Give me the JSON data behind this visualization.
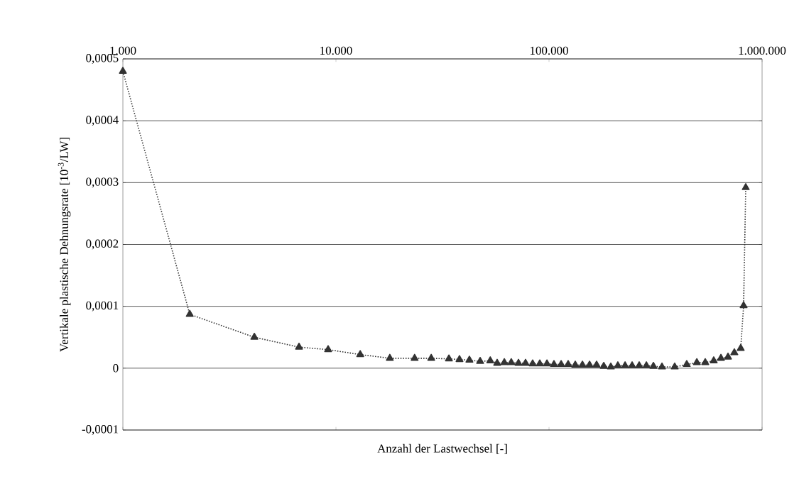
{
  "chart_data": {
    "type": "line",
    "xlabel": "Anzahl der Lastwechsel [-]",
    "ylabel": "Vertikale plastische Dehnungsrate [10$^{-3}$/LW]",
    "log": "x",
    "grid": "y",
    "marker": "triangle",
    "line_style": "dotted",
    "xlim": [
      1000,
      1000000
    ],
    "xticks": [
      {
        "value": 1000,
        "label": "1.000"
      },
      {
        "value": 10000,
        "label": "10.000"
      },
      {
        "value": 100000,
        "label": "100.000"
      },
      {
        "value": 1000000,
        "label": "1.000.000"
      }
    ],
    "ylim": [
      -0.0001,
      0.0005
    ],
    "yticks": [
      {
        "value": -0.0001,
        "label": "-0,0001"
      },
      0,
      {
        "value": 0.0001,
        "label": "0,0001"
      },
      {
        "value": 0.0002,
        "label": "0,0002"
      },
      {
        "value": 0.0003,
        "label": "0,0003"
      },
      {
        "value": 0.0004,
        "label": "0,0004"
      },
      {
        "value": 0.0005,
        "label": "0,0005"
      }
    ],
    "x": [
      1000,
      2060,
      4140,
      6710,
      9190,
      13000,
      17900,
      23400,
      28000,
      33900,
      38000,
      42300,
      47500,
      53000,
      57100,
      61700,
      66500,
      71900,
      77600,
      83800,
      90500,
      97800,
      105500,
      114000,
      123000,
      132800,
      143500,
      155000,
      167200,
      180700,
      195000,
      210400,
      227500,
      245500,
      265000,
      286400,
      309000,
      339000,
      389000,
      443000,
      494000,
      541000,
      593000,
      641000,
      692000,
      741000,
      794000,
      819000,
      838000
    ],
    "series": [
      {
        "color": "#333333",
        "values": [
          0.00048,
          8.7e-05,
          5e-05,
          3.4e-05,
          3e-05,
          2.2e-05,
          1.6e-05,
          1.6e-05,
          1.6e-05,
          1.5e-05,
          1.4e-05,
          1.3e-05,
          1.1e-05,
          1.2e-05,
          8e-06,
          9e-06,
          9e-06,
          8e-06,
          8e-06,
          7e-06,
          7e-06,
          7e-06,
          6e-06,
          6e-06,
          6e-06,
          5e-06,
          5e-06,
          5e-06,
          5e-06,
          3e-06,
          2e-06,
          4e-06,
          4e-06,
          4e-06,
          4e-06,
          4e-06,
          3e-06,
          2e-06,
          2e-06,
          6e-06,
          9e-06,
          9e-06,
          1.2e-05,
          1.6e-05,
          1.8e-05,
          2.5e-05,
          3.2e-05,
          0.000101,
          0.000292
        ]
      }
    ]
  }
}
